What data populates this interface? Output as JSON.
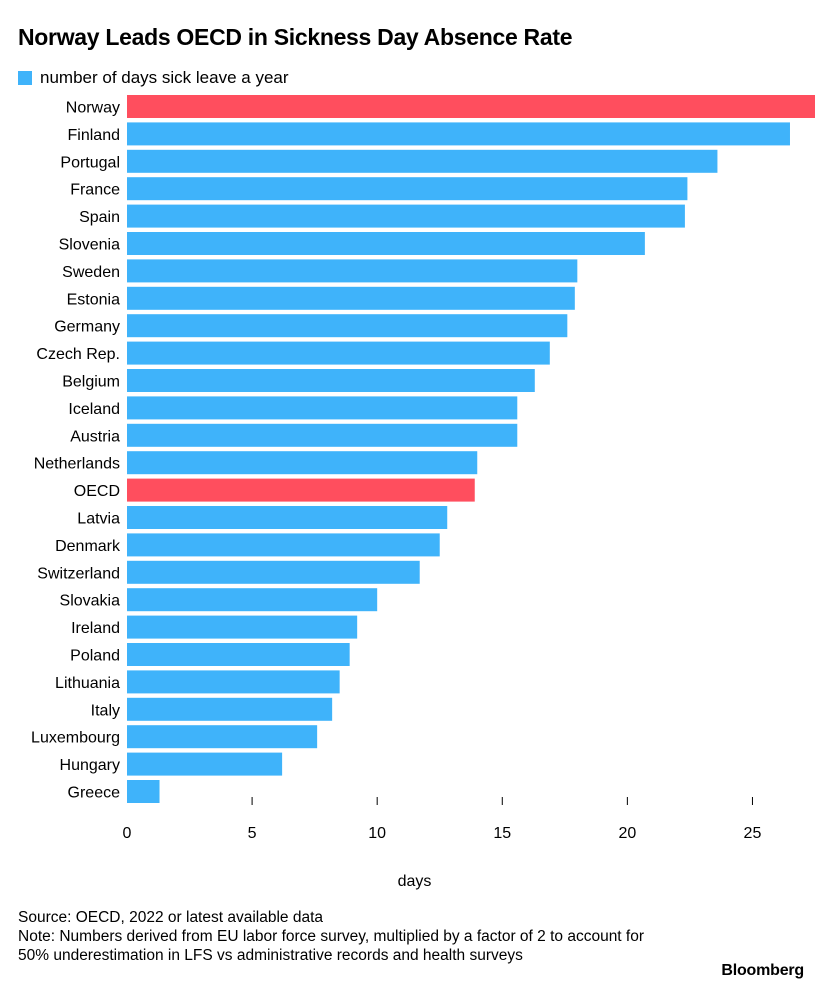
{
  "chart_data": {
    "type": "bar",
    "orientation": "horizontal",
    "title": "Norway Leads OECD in Sickness Day Absence Rate",
    "xlabel": "days",
    "ylabel": "",
    "xlim": [
      0,
      27.5
    ],
    "xticks": [
      0,
      5,
      10,
      15,
      20,
      25
    ],
    "legend": {
      "placement": "top-left",
      "entries": [
        "number of days sick leave a year"
      ]
    },
    "grid": false,
    "categories": [
      "Norway",
      "Finland",
      "Portugal",
      "France",
      "Spain",
      "Slovenia",
      "Sweden",
      "Estonia",
      "Germany",
      "Czech Rep.",
      "Belgium",
      "Iceland",
      "Austria",
      "Netherlands",
      "OECD",
      "Latvia",
      "Denmark",
      "Switzerland",
      "Slovakia",
      "Ireland",
      "Poland",
      "Lithuania",
      "Italy",
      "Luxembourg",
      "Hungary",
      "Greece"
    ],
    "series": [
      {
        "name": "number of days sick leave a year",
        "values": [
          27.5,
          26.5,
          23.6,
          22.4,
          22.3,
          20.7,
          18.0,
          17.9,
          17.6,
          16.9,
          16.3,
          15.6,
          15.6,
          14.0,
          13.9,
          12.8,
          12.5,
          11.7,
          10.0,
          9.2,
          8.9,
          8.5,
          8.2,
          7.6,
          6.2,
          1.3
        ]
      }
    ],
    "highlighted": [
      "Norway",
      "OECD"
    ]
  },
  "colors": {
    "bar": "#3fb3fa",
    "highlight": "#ff4e5e",
    "text": "#000000"
  },
  "notes": {
    "source": "Source: OECD, 2022 or latest available data",
    "note": "Note: Numbers derived from EU labor force survey, multiplied by a factor of 2 to account for 50% underestimation in LFS vs administrative records and health surveys"
  },
  "brand": "Bloomberg"
}
